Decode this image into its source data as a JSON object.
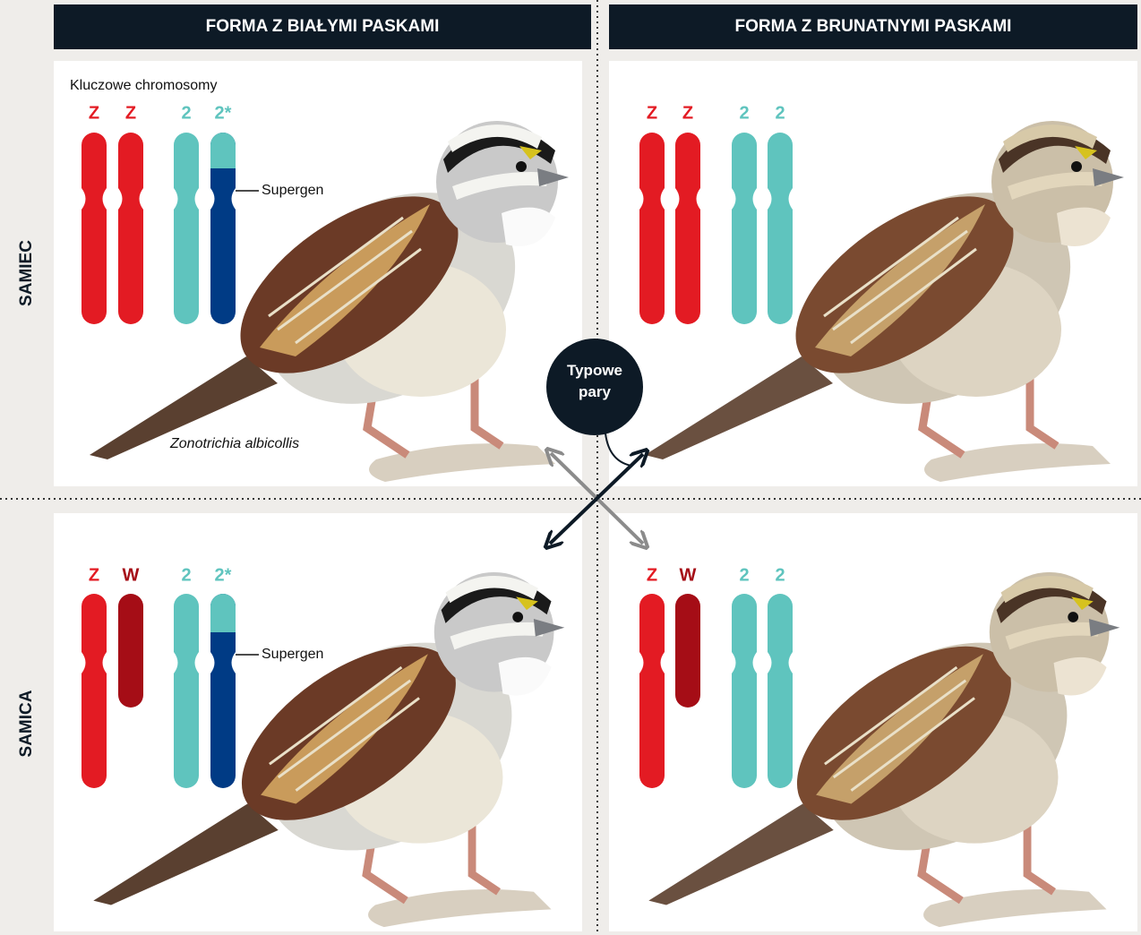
{
  "columns": [
    "FORMA Z BIAŁYMI PASKAMI",
    "FORMA Z BRUNATNYMI PASKAMI"
  ],
  "rows": [
    "SAMIEC",
    "SAMICA"
  ],
  "panels": [
    {
      "caption": "Kluczowe chromosomy",
      "chromosomes": [
        "Z",
        "Z",
        "2",
        "2*"
      ],
      "supergen": "Supergen",
      "species": "Zonotrichia albicollis"
    },
    {
      "chromosomes": [
        "Z",
        "Z",
        "2",
        "2"
      ]
    },
    {
      "chromosomes": [
        "Z",
        "W",
        "2",
        "2*"
      ],
      "supergen": "Supergen"
    },
    {
      "chromosomes": [
        "Z",
        "W",
        "2",
        "2"
      ]
    }
  ],
  "center_label": "Typowe pary"
}
